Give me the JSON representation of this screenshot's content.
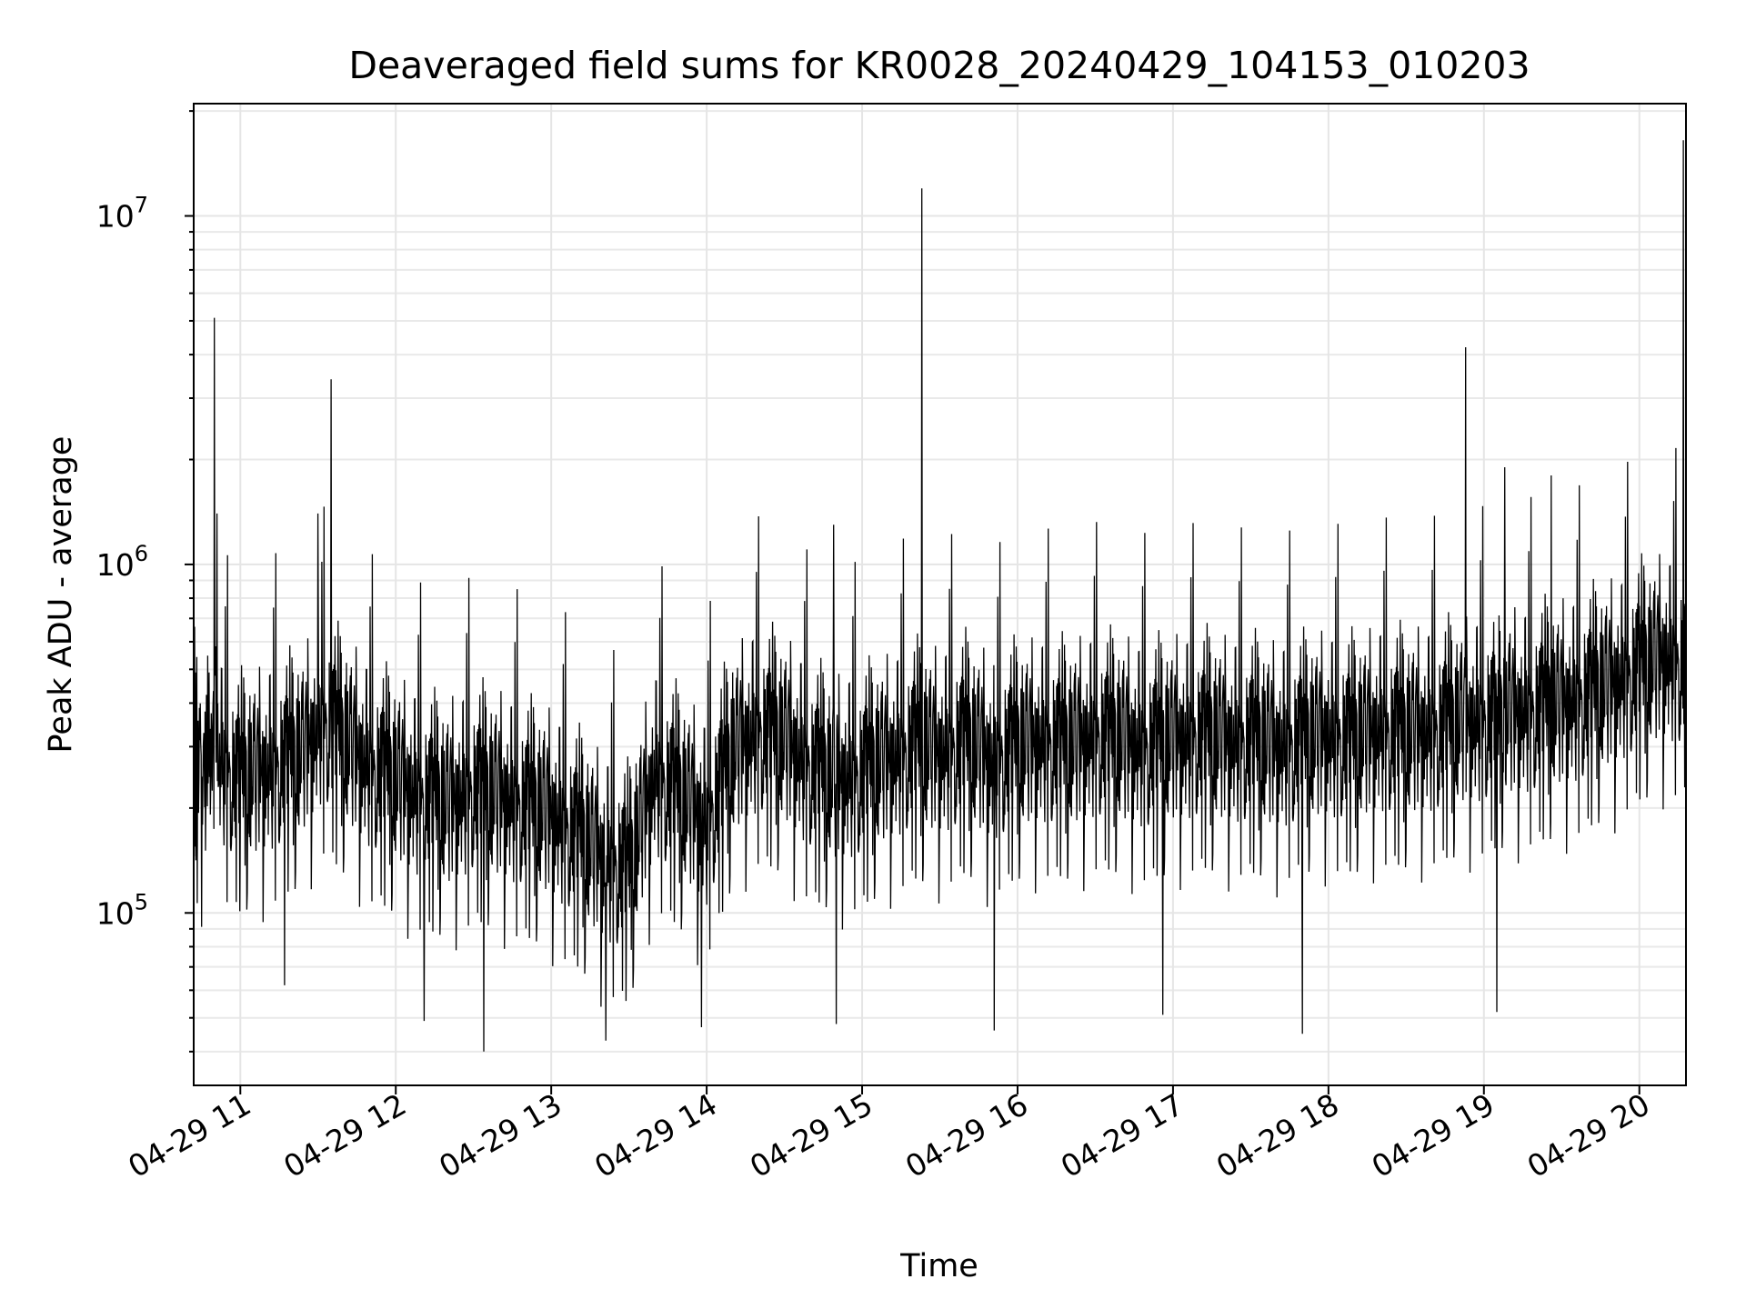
{
  "chart_data": {
    "type": "line",
    "title": "Deaveraged field sums for KR0028_20240429_104153_010203",
    "xlabel": "Time",
    "ylabel": "Peak ADU - average",
    "x_axis": {
      "kind": "time",
      "range": [
        "2024-04-29 10:42",
        "2024-04-29 20:18"
      ],
      "ticks": [
        "2024-04-29 11:00",
        "2024-04-29 12:00",
        "2024-04-29 13:00",
        "2024-04-29 14:00",
        "2024-04-29 15:00",
        "2024-04-29 16:00",
        "2024-04-29 17:00",
        "2024-04-29 18:00",
        "2024-04-29 19:00",
        "2024-04-29 20:00"
      ],
      "tick_labels": [
        "04-29 11",
        "04-29 12",
        "04-29 13",
        "04-29 14",
        "04-29 15",
        "04-29 16",
        "04-29 17",
        "04-29 18",
        "04-29 19",
        "04-29 20"
      ]
    },
    "y_axis": {
      "scale": "log",
      "range": [
        32000,
        21000000
      ],
      "ticks": [
        100000,
        1000000,
        10000000
      ],
      "tick_labels": [
        {
          "base": "10",
          "exp": "5"
        },
        {
          "base": "10",
          "exp": "6"
        },
        {
          "base": "10",
          "exp": "7"
        }
      ]
    },
    "grid": true,
    "line_color": "#000000",
    "series": [
      {
        "x": [
          "2024-04-29 10:42",
          "2024-04-29 10:52",
          "2024-04-29 10:59",
          "2024-04-29 11:07",
          "2024-04-29 11:14",
          "2024-04-29 11:24",
          "2024-04-29 11:32",
          "2024-04-29 11:40",
          "2024-04-29 11:50",
          "2024-04-29 12:00",
          "2024-04-29 12:10",
          "2024-04-29 12:20",
          "2024-04-29 12:30",
          "2024-04-29 12:40",
          "2024-04-29 12:50",
          "2024-04-29 13:00",
          "2024-04-29 13:10",
          "2024-04-29 13:20",
          "2024-04-29 13:30",
          "2024-04-29 13:40",
          "2024-04-29 13:50",
          "2024-04-29 14:00",
          "2024-04-29 14:10",
          "2024-04-29 14:20",
          "2024-04-29 14:30",
          "2024-04-29 14:40",
          "2024-04-29 14:50",
          "2024-04-29 15:00",
          "2024-04-29 15:10",
          "2024-04-29 15:20",
          "2024-04-29 15:30",
          "2024-04-29 15:40",
          "2024-04-29 15:50",
          "2024-04-29 16:00",
          "2024-04-29 16:10",
          "2024-04-29 16:20",
          "2024-04-29 16:30",
          "2024-04-29 16:40",
          "2024-04-29 16:50",
          "2024-04-29 17:00",
          "2024-04-29 17:10",
          "2024-04-29 17:20",
          "2024-04-29 17:30",
          "2024-04-29 17:40",
          "2024-04-29 17:50",
          "2024-04-29 18:00",
          "2024-04-29 18:10",
          "2024-04-29 18:20",
          "2024-04-29 18:30",
          "2024-04-29 18:40",
          "2024-04-29 18:50",
          "2024-04-29 19:00",
          "2024-04-29 19:10",
          "2024-04-29 19:20",
          "2024-04-29 19:30",
          "2024-04-29 19:40",
          "2024-04-29 19:50",
          "2024-04-29 20:00",
          "2024-04-29 20:10",
          "2024-04-29 20:18"
        ],
        "y": [
          250000,
          230000,
          200000,
          210000,
          220000,
          240000,
          300000,
          260000,
          220000,
          200000,
          180000,
          170000,
          190000,
          180000,
          170000,
          160000,
          140000,
          120000,
          110000,
          210000,
          180000,
          150000,
          240000,
          280000,
          260000,
          220000,
          200000,
          210000,
          230000,
          250000,
          240000,
          260000,
          230000,
          250000,
          260000,
          250000,
          270000,
          260000,
          250000,
          260000,
          270000,
          260000,
          260000,
          250000,
          260000,
          270000,
          260000,
          280000,
          270000,
          280000,
          290000,
          300000,
          310000,
          320000,
          330000,
          350000,
          380000,
          420000,
          450000,
          430000
        ],
        "spikes": [
          {
            "x": "2024-04-29 10:50",
            "y": 5100000
          },
          {
            "x": "2024-04-29 10:51",
            "y": 1400000
          },
          {
            "x": "2024-04-29 11:30",
            "y": 1400000
          },
          {
            "x": "2024-04-29 11:35",
            "y": 3400000
          },
          {
            "x": "2024-04-29 14:49",
            "y": 1300000
          },
          {
            "x": "2024-04-29 15:23",
            "y": 12000000
          },
          {
            "x": "2024-04-29 18:53",
            "y": 4200000
          },
          {
            "x": "2024-04-29 19:08",
            "y": 1900000
          },
          {
            "x": "2024-04-29 19:26",
            "y": 1800000
          },
          {
            "x": "2024-04-29 20:17",
            "y": 16500000
          }
        ],
        "dips": [
          {
            "x": "2024-04-29 11:17",
            "y": 62000
          },
          {
            "x": "2024-04-29 12:11",
            "y": 49000
          },
          {
            "x": "2024-04-29 12:34",
            "y": 40000
          },
          {
            "x": "2024-04-29 13:21",
            "y": 43000
          },
          {
            "x": "2024-04-29 13:58",
            "y": 47000
          },
          {
            "x": "2024-04-29 14:50",
            "y": 48000
          },
          {
            "x": "2024-04-29 15:51",
            "y": 46000
          },
          {
            "x": "2024-04-29 16:56",
            "y": 51000
          },
          {
            "x": "2024-04-29 17:50",
            "y": 45000
          },
          {
            "x": "2024-04-29 19:05",
            "y": 52000
          }
        ]
      }
    ]
  }
}
